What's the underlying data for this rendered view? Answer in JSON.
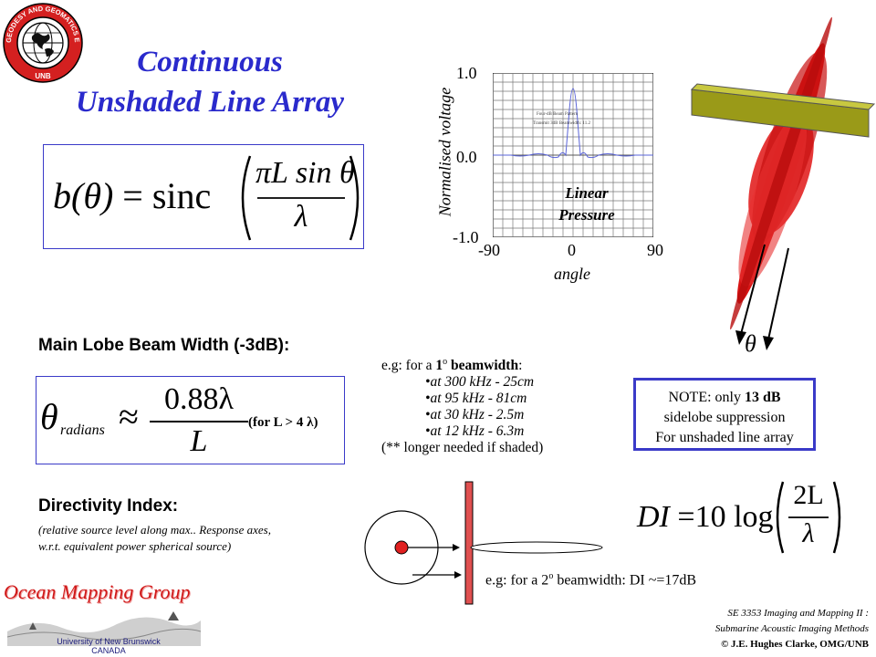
{
  "title": {
    "line1": "Continuous",
    "line2": "Unshaded Line Array"
  },
  "logo": {
    "ring_text": "GEODESY AND GEOMATICS ENGINEERING",
    "bottom_text": "UNB"
  },
  "beam_pattern_eq": {
    "lhs": "b(θ)",
    "equals": "=",
    "fn": "sinc",
    "numerator": "πL sin θ",
    "denominator": "λ"
  },
  "plot": {
    "ylabel": "Normalised voltage",
    "xlabel": "angle",
    "yticks": [
      "1.0",
      "0.0",
      "-1.0"
    ],
    "xticks": [
      "-90",
      "0",
      "90"
    ],
    "inner_note1": "Four-dB Beam Pattern",
    "inner_note2": "Transmit 3dB Beamwidth: 11.2",
    "annotation1": "Linear",
    "annotation2": "Pressure"
  },
  "main_lobe": {
    "heading": "Main Lobe Beam Width (-3dB):",
    "lhs": "θ",
    "lhs_sub": "radians",
    "approx": "≈",
    "numerator": "0.88λ",
    "denominator": "L",
    "condition": "(for L > 4 λ)"
  },
  "examples": {
    "intro_prefix": "e.g: for a ",
    "intro_bold": "1",
    "intro_sup": "o",
    "intro_bold2": " beamwidth",
    "intro_suffix": ":",
    "items": [
      "at 300 kHz - 25cm",
      "at  95 kHz - 81cm",
      "at  30 kHz - 2.5m",
      "at  12 kHz - 6.3m"
    ],
    "footnote": "(** longer needed if shaded)"
  },
  "note_box": {
    "line1_prefix": "NOTE: only ",
    "line1_bold": "13 dB",
    "line2": "sidelobe suppression",
    "line3": "For unshaded line array"
  },
  "directivity": {
    "heading": "Directivity Index:",
    "desc1": "(relative source level along max.. Response axes,",
    "desc2": "w.r.t. equivalent power spherical source)",
    "eq_lhs": "DI",
    "eq_equals": "=",
    "eq_coef": "10",
    "eq_fn": "log",
    "eq_num": "2L",
    "eq_den": "λ",
    "example_prefix": "e.g: for a 2",
    "example_sup": "o",
    "example_suffix": " beamwidth: DI ~=17dB"
  },
  "theta_label": "θ",
  "omg_logo": {
    "name": "Ocean Mapping Group",
    "line1": "University of New Brunswick",
    "line2": "CANADA"
  },
  "footer": {
    "line1": "SE 3353 Imaging and Mapping II :",
    "line2": "Submarine Acoustic Imaging Methods",
    "line3": "© J.E. Hughes Clarke, OMG/UNB"
  },
  "colors": {
    "title": "#2a2acc",
    "box_border": "#3a3ac8",
    "beam_red": "#e01818",
    "bar_olive": "#9a9a18",
    "array_red": "#e05050"
  }
}
